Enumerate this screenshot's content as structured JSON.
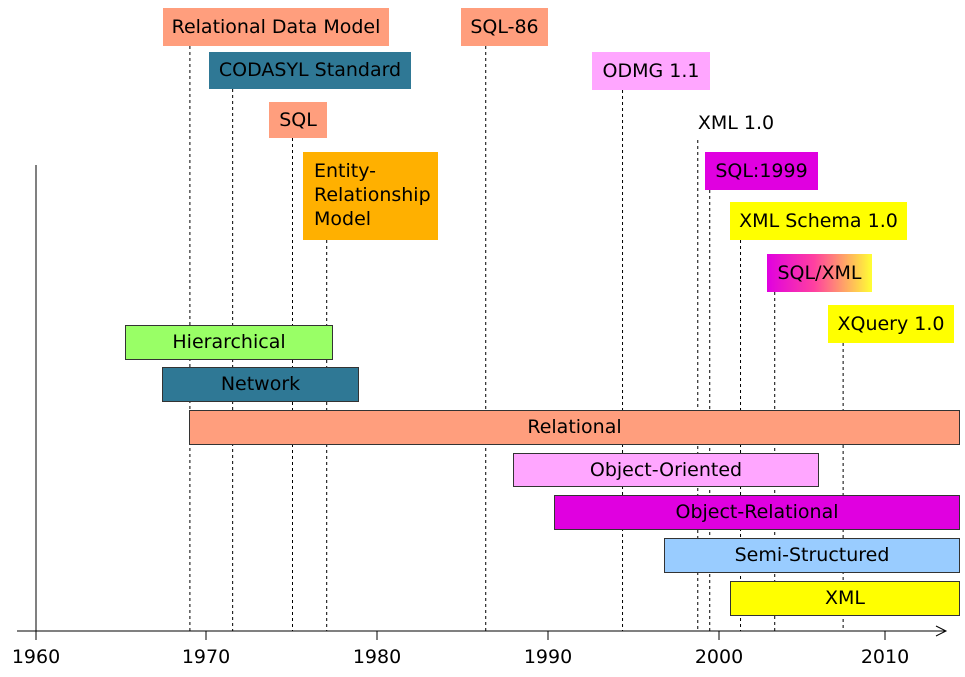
{
  "axis": {
    "years": [
      "1960",
      "1970",
      "1980",
      "1990",
      "2000",
      "2010"
    ]
  },
  "milestones": [
    {
      "id": "relational-data-model",
      "label": "Relational Data Model",
      "year": 1969,
      "color": "#ff9e7d"
    },
    {
      "id": "codasyl-standard",
      "label": "CODASYL Standard",
      "year": 1971.5,
      "color": "#2f7895"
    },
    {
      "id": "sql",
      "label": "SQL",
      "year": 1975,
      "color": "#ff9e7d"
    },
    {
      "id": "entity-relationship-model",
      "label": "Entity-\nRelationship\nModel",
      "year": 1977,
      "color": "#ffb000"
    },
    {
      "id": "sql-86",
      "label": "SQL-86",
      "year": 1986.3,
      "color": "#ff9e7d"
    },
    {
      "id": "odmg-1-1",
      "label": "ODMG 1.1",
      "year": 1994.3,
      "color": "#ffa6ff"
    },
    {
      "id": "xml-1-0",
      "label": "XML 1.0",
      "year": 1998.7,
      "color": "#ffffff"
    },
    {
      "id": "sql-1999",
      "label": "SQL:1999",
      "year": 1999.4,
      "color": "#e000e0"
    },
    {
      "id": "xml-schema-1-0",
      "label": "XML Schema 1.0",
      "year": 2001.2,
      "color": "#ffff00"
    },
    {
      "id": "sql-xml",
      "label": "SQL/XML",
      "year": 2003.2,
      "color_from": "#e000e0",
      "color_to": "#ffff33"
    },
    {
      "id": "xquery-1-0",
      "label": "XQuery 1.0",
      "year": 2007.2,
      "color": "#ffff00"
    }
  ],
  "eras": [
    {
      "id": "hierarchical",
      "label": "Hierarchical",
      "color": "#99ff66"
    },
    {
      "id": "network",
      "label": "Network",
      "color": "#2f7895"
    },
    {
      "id": "relational",
      "label": "Relational",
      "color": "#ff9e7d"
    },
    {
      "id": "object-oriented",
      "label": "Object-Oriented",
      "color": "#ffa6ff"
    },
    {
      "id": "object-relational",
      "label": "Object-Relational",
      "color": "#e000e0"
    },
    {
      "id": "semi-structured",
      "label": "Semi-Structured",
      "color": "#99ccff"
    },
    {
      "id": "xml",
      "label": "XML",
      "color": "#ffff00"
    }
  ]
}
